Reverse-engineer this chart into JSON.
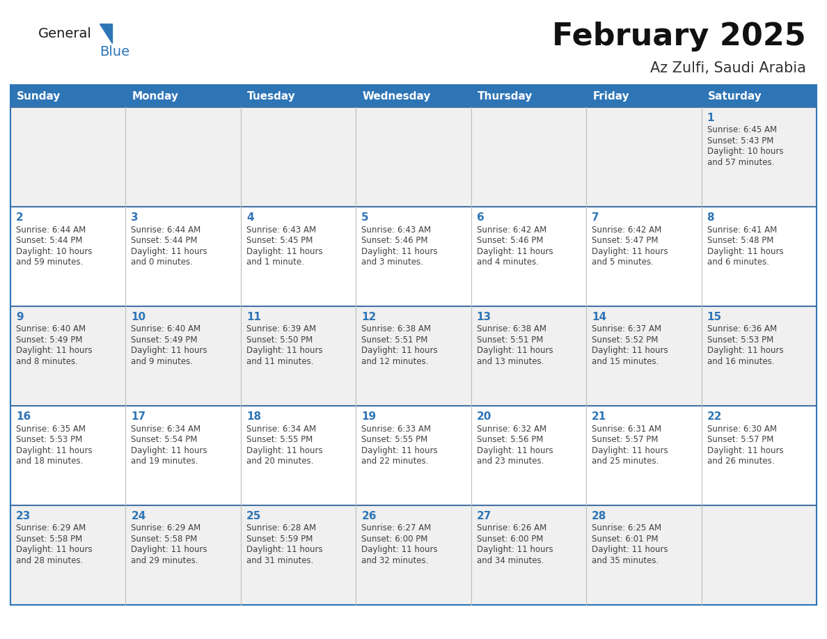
{
  "title": "February 2025",
  "subtitle": "Az Zulfi, Saudi Arabia",
  "days_of_week": [
    "Sunday",
    "Monday",
    "Tuesday",
    "Wednesday",
    "Thursday",
    "Friday",
    "Saturday"
  ],
  "header_bg": "#2E75B6",
  "header_text_color": "#FFFFFF",
  "cell_bg_odd": "#F0F0F0",
  "cell_bg_even": "#FFFFFF",
  "date_color": "#2E75B6",
  "info_color": "#404040",
  "border_color": "#2E75B6",
  "row_divider_color": "#4472A8",
  "background_color": "#FFFFFF",
  "logo_general_color": "#1a1a1a",
  "logo_blue_color": "#2E75B6",
  "calendar_data": [
    {
      "day": 1,
      "col": 6,
      "row": 0,
      "sunrise": "6:45 AM",
      "sunset": "5:43 PM",
      "daylight_line1": "Daylight: 10 hours",
      "daylight_line2": "and 57 minutes."
    },
    {
      "day": 2,
      "col": 0,
      "row": 1,
      "sunrise": "6:44 AM",
      "sunset": "5:44 PM",
      "daylight_line1": "Daylight: 10 hours",
      "daylight_line2": "and 59 minutes."
    },
    {
      "day": 3,
      "col": 1,
      "row": 1,
      "sunrise": "6:44 AM",
      "sunset": "5:44 PM",
      "daylight_line1": "Daylight: 11 hours",
      "daylight_line2": "and 0 minutes."
    },
    {
      "day": 4,
      "col": 2,
      "row": 1,
      "sunrise": "6:43 AM",
      "sunset": "5:45 PM",
      "daylight_line1": "Daylight: 11 hours",
      "daylight_line2": "and 1 minute."
    },
    {
      "day": 5,
      "col": 3,
      "row": 1,
      "sunrise": "6:43 AM",
      "sunset": "5:46 PM",
      "daylight_line1": "Daylight: 11 hours",
      "daylight_line2": "and 3 minutes."
    },
    {
      "day": 6,
      "col": 4,
      "row": 1,
      "sunrise": "6:42 AM",
      "sunset": "5:46 PM",
      "daylight_line1": "Daylight: 11 hours",
      "daylight_line2": "and 4 minutes."
    },
    {
      "day": 7,
      "col": 5,
      "row": 1,
      "sunrise": "6:42 AM",
      "sunset": "5:47 PM",
      "daylight_line1": "Daylight: 11 hours",
      "daylight_line2": "and 5 minutes."
    },
    {
      "day": 8,
      "col": 6,
      "row": 1,
      "sunrise": "6:41 AM",
      "sunset": "5:48 PM",
      "daylight_line1": "Daylight: 11 hours",
      "daylight_line2": "and 6 minutes."
    },
    {
      "day": 9,
      "col": 0,
      "row": 2,
      "sunrise": "6:40 AM",
      "sunset": "5:49 PM",
      "daylight_line1": "Daylight: 11 hours",
      "daylight_line2": "and 8 minutes."
    },
    {
      "day": 10,
      "col": 1,
      "row": 2,
      "sunrise": "6:40 AM",
      "sunset": "5:49 PM",
      "daylight_line1": "Daylight: 11 hours",
      "daylight_line2": "and 9 minutes."
    },
    {
      "day": 11,
      "col": 2,
      "row": 2,
      "sunrise": "6:39 AM",
      "sunset": "5:50 PM",
      "daylight_line1": "Daylight: 11 hours",
      "daylight_line2": "and 11 minutes."
    },
    {
      "day": 12,
      "col": 3,
      "row": 2,
      "sunrise": "6:38 AM",
      "sunset": "5:51 PM",
      "daylight_line1": "Daylight: 11 hours",
      "daylight_line2": "and 12 minutes."
    },
    {
      "day": 13,
      "col": 4,
      "row": 2,
      "sunrise": "6:38 AM",
      "sunset": "5:51 PM",
      "daylight_line1": "Daylight: 11 hours",
      "daylight_line2": "and 13 minutes."
    },
    {
      "day": 14,
      "col": 5,
      "row": 2,
      "sunrise": "6:37 AM",
      "sunset": "5:52 PM",
      "daylight_line1": "Daylight: 11 hours",
      "daylight_line2": "and 15 minutes."
    },
    {
      "day": 15,
      "col": 6,
      "row": 2,
      "sunrise": "6:36 AM",
      "sunset": "5:53 PM",
      "daylight_line1": "Daylight: 11 hours",
      "daylight_line2": "and 16 minutes."
    },
    {
      "day": 16,
      "col": 0,
      "row": 3,
      "sunrise": "6:35 AM",
      "sunset": "5:53 PM",
      "daylight_line1": "Daylight: 11 hours",
      "daylight_line2": "and 18 minutes."
    },
    {
      "day": 17,
      "col": 1,
      "row": 3,
      "sunrise": "6:34 AM",
      "sunset": "5:54 PM",
      "daylight_line1": "Daylight: 11 hours",
      "daylight_line2": "and 19 minutes."
    },
    {
      "day": 18,
      "col": 2,
      "row": 3,
      "sunrise": "6:34 AM",
      "sunset": "5:55 PM",
      "daylight_line1": "Daylight: 11 hours",
      "daylight_line2": "and 20 minutes."
    },
    {
      "day": 19,
      "col": 3,
      "row": 3,
      "sunrise": "6:33 AM",
      "sunset": "5:55 PM",
      "daylight_line1": "Daylight: 11 hours",
      "daylight_line2": "and 22 minutes."
    },
    {
      "day": 20,
      "col": 4,
      "row": 3,
      "sunrise": "6:32 AM",
      "sunset": "5:56 PM",
      "daylight_line1": "Daylight: 11 hours",
      "daylight_line2": "and 23 minutes."
    },
    {
      "day": 21,
      "col": 5,
      "row": 3,
      "sunrise": "6:31 AM",
      "sunset": "5:57 PM",
      "daylight_line1": "Daylight: 11 hours",
      "daylight_line2": "and 25 minutes."
    },
    {
      "day": 22,
      "col": 6,
      "row": 3,
      "sunrise": "6:30 AM",
      "sunset": "5:57 PM",
      "daylight_line1": "Daylight: 11 hours",
      "daylight_line2": "and 26 minutes."
    },
    {
      "day": 23,
      "col": 0,
      "row": 4,
      "sunrise": "6:29 AM",
      "sunset": "5:58 PM",
      "daylight_line1": "Daylight: 11 hours",
      "daylight_line2": "and 28 minutes."
    },
    {
      "day": 24,
      "col": 1,
      "row": 4,
      "sunrise": "6:29 AM",
      "sunset": "5:58 PM",
      "daylight_line1": "Daylight: 11 hours",
      "daylight_line2": "and 29 minutes."
    },
    {
      "day": 25,
      "col": 2,
      "row": 4,
      "sunrise": "6:28 AM",
      "sunset": "5:59 PM",
      "daylight_line1": "Daylight: 11 hours",
      "daylight_line2": "and 31 minutes."
    },
    {
      "day": 26,
      "col": 3,
      "row": 4,
      "sunrise": "6:27 AM",
      "sunset": "6:00 PM",
      "daylight_line1": "Daylight: 11 hours",
      "daylight_line2": "and 32 minutes."
    },
    {
      "day": 27,
      "col": 4,
      "row": 4,
      "sunrise": "6:26 AM",
      "sunset": "6:00 PM",
      "daylight_line1": "Daylight: 11 hours",
      "daylight_line2": "and 34 minutes."
    },
    {
      "day": 28,
      "col": 5,
      "row": 4,
      "sunrise": "6:25 AM",
      "sunset": "6:01 PM",
      "daylight_line1": "Daylight: 11 hours",
      "daylight_line2": "and 35 minutes."
    }
  ]
}
